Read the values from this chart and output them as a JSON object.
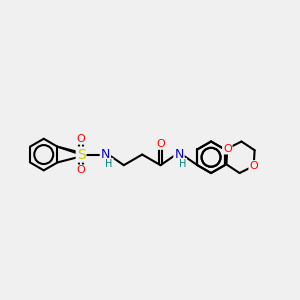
{
  "bg_color": "#f0f0f0",
  "atom_colors": {
    "C": "#000000",
    "N": "#0000cd",
    "O": "#ff0000",
    "S": "#cccc00",
    "H": "#008080"
  },
  "bond_color": "#000000",
  "bond_width": 1.5,
  "figsize": [
    3.0,
    3.0
  ],
  "dpi": 100
}
